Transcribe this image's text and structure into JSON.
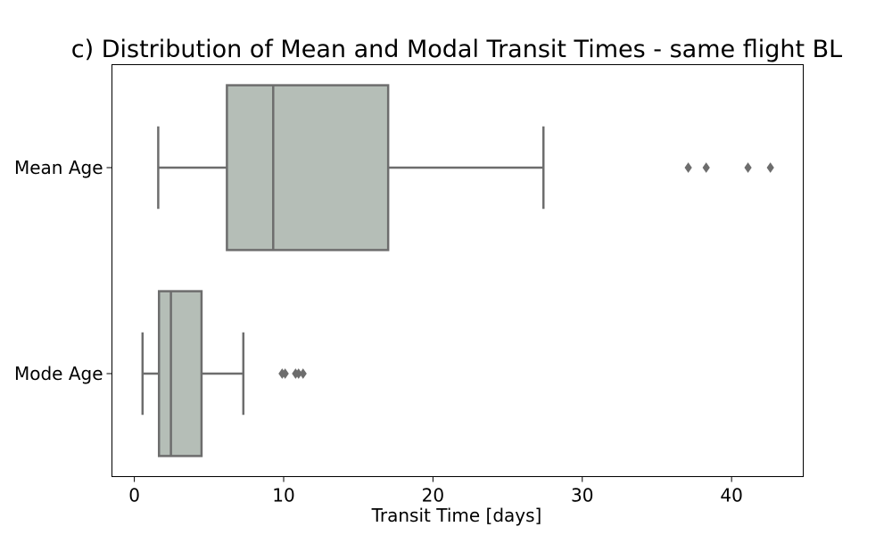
{
  "chart_data": {
    "type": "box",
    "orientation": "horizontal",
    "title": "c) Distribution of Mean and Modal Transit Times - same flight BL",
    "xlabel": "Transit Time [days]",
    "ylabel": "",
    "xlim": [
      -1.5,
      44.8
    ],
    "xticks": [
      0,
      10,
      20,
      30,
      40
    ],
    "grid": false,
    "box_color": "#b5beb7",
    "line_color": "#6d6d6d",
    "categories": [
      "Mean Age",
      "Mode Age"
    ],
    "boxes": [
      {
        "label": "Mean Age",
        "whisker_low": 1.6,
        "q1": 6.2,
        "median": 9.3,
        "q3": 17.0,
        "whisker_high": 27.4,
        "outliers": [
          37.1,
          38.3,
          41.1,
          42.6
        ]
      },
      {
        "label": "Mode Age",
        "whisker_low": 0.55,
        "q1": 1.65,
        "median": 2.45,
        "q3": 4.5,
        "whisker_high": 7.3,
        "outliers": [
          9.9,
          10.1,
          10.8,
          11.0,
          11.3
        ]
      }
    ]
  }
}
